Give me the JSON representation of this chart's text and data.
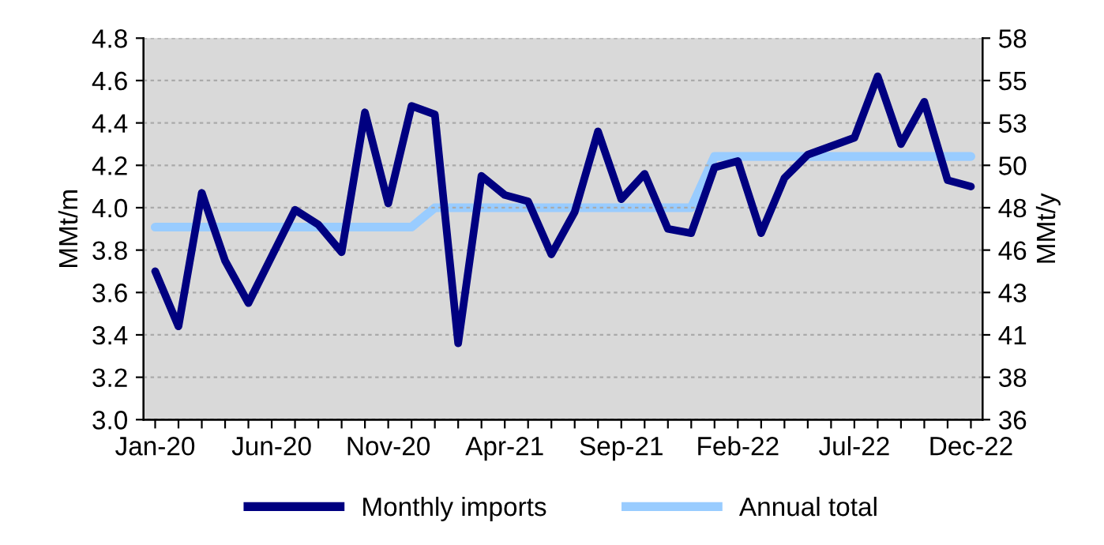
{
  "chart_data": {
    "type": "line",
    "categories": [
      "Jan-20",
      null,
      null,
      null,
      null,
      "Jun-20",
      null,
      null,
      null,
      null,
      "Nov-20",
      null,
      null,
      null,
      null,
      "Apr-21",
      null,
      null,
      null,
      null,
      "Sep-21",
      null,
      null,
      null,
      null,
      "Feb-22",
      null,
      null,
      null,
      null,
      "Jul-22",
      null,
      null,
      null,
      null,
      "Dec-22"
    ],
    "series": [
      {
        "name": "Monthly imports",
        "color": "#000080",
        "values": [
          3.7,
          3.44,
          4.07,
          3.75,
          3.55,
          3.77,
          3.99,
          3.92,
          3.79,
          4.45,
          4.02,
          4.48,
          4.44,
          3.36,
          4.15,
          4.06,
          4.03,
          3.78,
          3.98,
          4.36,
          4.04,
          4.16,
          3.9,
          3.88,
          4.19,
          4.22,
          3.88,
          4.14,
          4.25,
          4.29,
          4.33,
          4.62,
          4.3,
          4.5,
          4.13,
          4.1
        ]
      },
      {
        "name": "Annual total",
        "color": "#99ccff",
        "axis": "y2",
        "values": [
          46.9,
          46.9,
          46.9,
          46.9,
          46.9,
          46.9,
          46.9,
          46.9,
          46.9,
          46.9,
          46.9,
          46.9,
          48.0,
          48.0,
          48.0,
          48.0,
          48.0,
          48.0,
          48.0,
          48.0,
          48.0,
          48.0,
          48.0,
          48.0,
          50.9,
          50.9,
          50.9,
          50.9,
          50.9,
          50.9,
          50.9,
          50.9,
          50.9,
          50.9,
          50.9,
          50.9
        ]
      }
    ],
    "ylabel": "MMt/m",
    "y2label": "MMt/y",
    "ylim": [
      3.0,
      4.8
    ],
    "yticks": [
      {
        "value": 3.0,
        "label": "3.0"
      },
      {
        "value": 3.2,
        "label": "3.2"
      },
      {
        "value": 3.4,
        "label": "3.4"
      },
      {
        "value": 3.6,
        "label": "3.6"
      },
      {
        "value": 3.8,
        "label": "3.8"
      },
      {
        "value": 4.0,
        "label": "4.0"
      },
      {
        "value": 4.2,
        "label": "4.2"
      },
      {
        "value": 4.4,
        "label": "4.4"
      },
      {
        "value": 4.6,
        "label": "4.6"
      },
      {
        "value": 4.8,
        "label": "4.8"
      }
    ],
    "y2lim": [
      36,
      57.6
    ],
    "y2ticks": [
      36,
      {
        "value": 38.4,
        "label": "38"
      },
      {
        "value": 40.8,
        "label": "41"
      },
      {
        "value": 43.2,
        "label": "43"
      },
      {
        "value": 45.6,
        "label": "46"
      },
      48,
      {
        "value": 50.4,
        "label": "50"
      },
      {
        "value": 52.8,
        "label": "53"
      },
      {
        "value": 55.2,
        "label": "55"
      },
      {
        "value": 57.6,
        "label": "58"
      }
    ],
    "grid": "y",
    "legend": "bottom",
    "marker": "none",
    "line_style": "solid"
  }
}
